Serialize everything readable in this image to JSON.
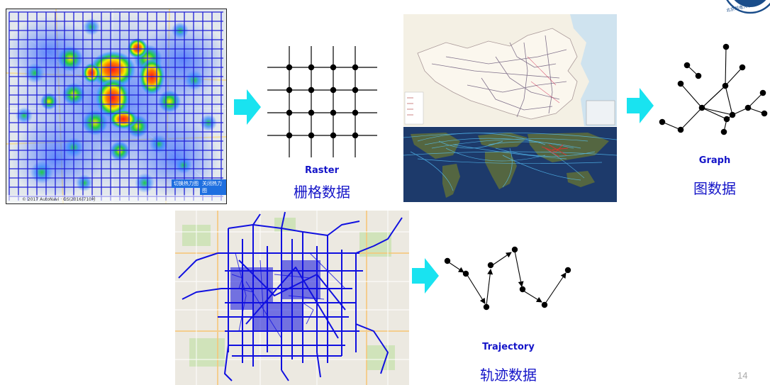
{
  "slide": {
    "page_number": "14",
    "logo_text": "北京邮电大学",
    "colors": {
      "accent": "#1414c8",
      "arrow": "#19e3f0",
      "node": "#000000"
    }
  },
  "raster": {
    "label_en": "Raster",
    "label_zh": "栅格数据",
    "map_credit": "© 2017 AutoNavi · GS(2016)710号",
    "map_buttons": [
      "切换热力图",
      "关闭热力图"
    ]
  },
  "graph": {
    "label_en": "Graph",
    "label_zh": "图数据"
  },
  "trajectory": {
    "label_en": "Trajectory",
    "label_zh": "轨迹数据"
  }
}
